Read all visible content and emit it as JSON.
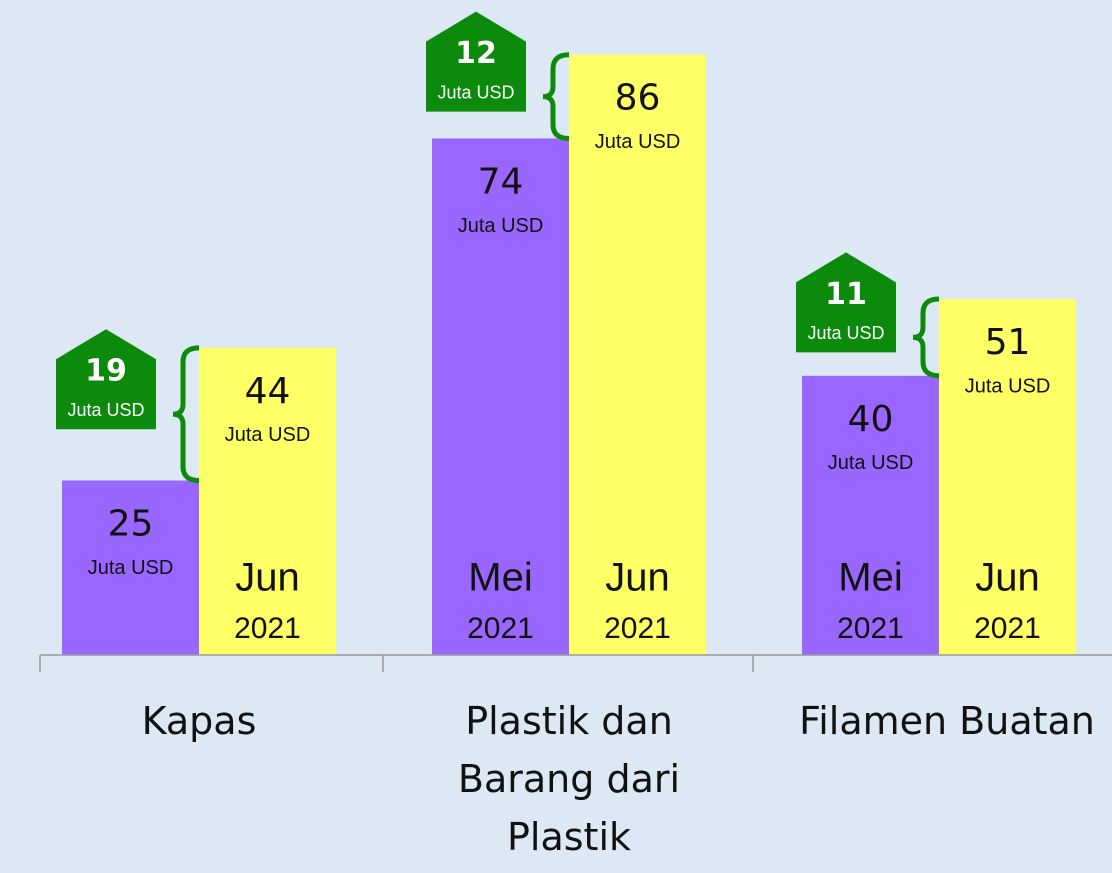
{
  "chart_data": {
    "type": "bar",
    "categories": [
      "Kapas",
      "Plastik dan Barang dari Plastik",
      "Filamen Buatan"
    ],
    "unit": "Juta USD",
    "series": [
      {
        "name": "Mei",
        "year": "2021",
        "color": "#9966ff",
        "values": [
          25,
          74,
          40
        ],
        "show_name": [
          false,
          true,
          true
        ]
      },
      {
        "name": "Jun",
        "year": "2021",
        "color": "#ffff66",
        "values": [
          44,
          86,
          51
        ],
        "show_name": [
          true,
          true,
          true
        ]
      }
    ],
    "differences": [
      19,
      12,
      11
    ],
    "difference_color": "#0b8a0b"
  }
}
